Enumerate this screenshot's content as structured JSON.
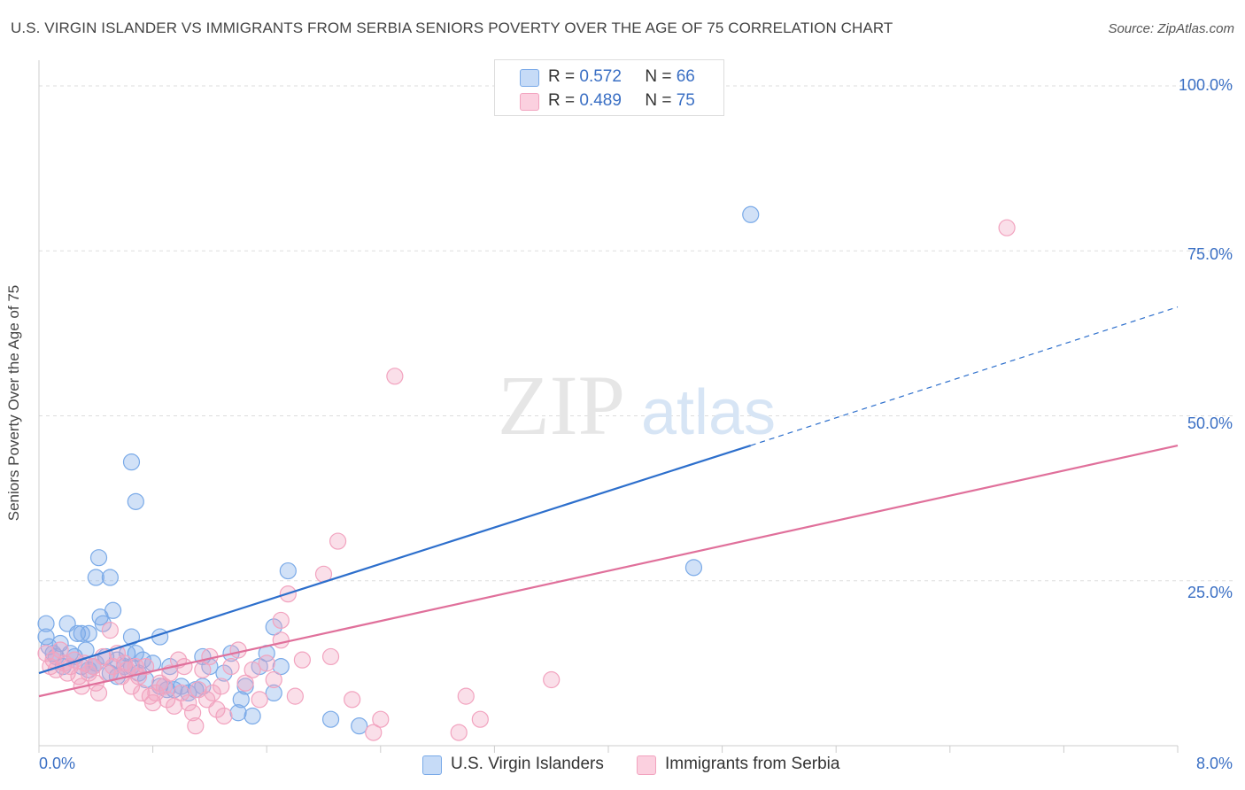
{
  "title": "U.S. VIRGIN ISLANDER VS IMMIGRANTS FROM SERBIA SENIORS POVERTY OVER THE AGE OF 75 CORRELATION CHART",
  "source": "Source: ZipAtlas.com",
  "watermark": {
    "zip": "ZIP",
    "atlas": "atlas"
  },
  "legend_top": [
    {
      "r_label": "R =",
      "r_value": "0.572",
      "n_label": "N =",
      "n_value": "66"
    },
    {
      "r_label": "R =",
      "r_value": "0.489",
      "n_label": "N =",
      "n_value": "75"
    }
  ],
  "chart_data": {
    "type": "scatter",
    "title": "U.S. VIRGIN ISLANDER VS IMMIGRANTS FROM SERBIA SENIORS POVERTY OVER THE AGE OF 75 CORRELATION CHART",
    "xlabel": "",
    "ylabel": "Seniors Poverty Over the Age of 75",
    "xlim": [
      0,
      8
    ],
    "ylim": [
      0,
      100
    ],
    "x_tick_labels": [
      "0.0%",
      "8.0%"
    ],
    "y_tick_labels": [
      "100.0%",
      "75.0%",
      "50.0%",
      "25.0%"
    ],
    "y_ticks": [
      100,
      75,
      50,
      25
    ],
    "grid": true,
    "legend_position": "bottom",
    "series": [
      {
        "name": "U.S. Virgin Islanders",
        "color": "#7aaae8",
        "line_color": "#2d6fcc",
        "trend": {
          "x": [
            0.0,
            5.0
          ],
          "y": [
            11.0,
            45.5
          ],
          "dashed_to": [
            8.0,
            66.5
          ]
        },
        "points": [
          [
            0.05,
            18.5
          ],
          [
            0.05,
            16.5
          ],
          [
            0.07,
            15.0
          ],
          [
            0.1,
            14.0
          ],
          [
            0.12,
            13.5
          ],
          [
            0.15,
            15.5
          ],
          [
            0.17,
            12.0
          ],
          [
            0.2,
            18.5
          ],
          [
            0.22,
            14.0
          ],
          [
            0.25,
            13.5
          ],
          [
            0.27,
            17.0
          ],
          [
            0.3,
            12.0
          ],
          [
            0.3,
            17.0
          ],
          [
            0.33,
            14.5
          ],
          [
            0.35,
            11.5
          ],
          [
            0.35,
            17.0
          ],
          [
            0.38,
            12.0
          ],
          [
            0.4,
            12.5
          ],
          [
            0.4,
            25.5
          ],
          [
            0.43,
            19.5
          ],
          [
            0.45,
            18.5
          ],
          [
            0.47,
            13.5
          ],
          [
            0.5,
            25.5
          ],
          [
            0.5,
            11.0
          ],
          [
            0.52,
            20.5
          ],
          [
            0.55,
            13.0
          ],
          [
            0.55,
            10.5
          ],
          [
            0.6,
            12.0
          ],
          [
            0.62,
            14.0
          ],
          [
            0.65,
            12.0
          ],
          [
            0.65,
            16.5
          ],
          [
            0.68,
            14.0
          ],
          [
            0.7,
            11.0
          ],
          [
            0.73,
            13.0
          ],
          [
            0.75,
            10.0
          ],
          [
            0.8,
            12.5
          ],
          [
            0.85,
            16.5
          ],
          [
            0.85,
            9.0
          ],
          [
            0.9,
            8.5
          ],
          [
            0.92,
            12.0
          ],
          [
            0.95,
            8.5
          ],
          [
            1.0,
            9.0
          ],
          [
            1.05,
            8.0
          ],
          [
            1.1,
            8.5
          ],
          [
            1.15,
            9.0
          ],
          [
            1.15,
            13.5
          ],
          [
            1.2,
            12.0
          ],
          [
            1.3,
            11.0
          ],
          [
            1.35,
            14.0
          ],
          [
            1.4,
            5.0
          ],
          [
            1.42,
            7.0
          ],
          [
            1.45,
            9.0
          ],
          [
            1.5,
            4.5
          ],
          [
            1.55,
            12.0
          ],
          [
            1.6,
            14.0
          ],
          [
            1.65,
            8.0
          ],
          [
            1.7,
            12.0
          ],
          [
            1.75,
            26.5
          ],
          [
            1.65,
            18.0
          ],
          [
            0.65,
            43.0
          ],
          [
            0.68,
            37.0
          ],
          [
            0.42,
            28.5
          ],
          [
            2.05,
            4.0
          ],
          [
            2.25,
            3.0
          ],
          [
            4.6,
            27.0
          ],
          [
            5.0,
            80.5
          ]
        ]
      },
      {
        "name": "Immigrants from Serbia",
        "color": "#f2a3bf",
        "line_color": "#e0709b",
        "trend": {
          "x": [
            0.0,
            8.0
          ],
          "y": [
            7.5,
            45.5
          ]
        },
        "points": [
          [
            0.05,
            14.0
          ],
          [
            0.08,
            12.0
          ],
          [
            0.1,
            13.0
          ],
          [
            0.12,
            11.5
          ],
          [
            0.15,
            14.5
          ],
          [
            0.18,
            12.5
          ],
          [
            0.2,
            11.0
          ],
          [
            0.22,
            12.0
          ],
          [
            0.25,
            13.0
          ],
          [
            0.28,
            10.5
          ],
          [
            0.3,
            9.0
          ],
          [
            0.32,
            12.5
          ],
          [
            0.35,
            11.0
          ],
          [
            0.38,
            12.0
          ],
          [
            0.4,
            9.5
          ],
          [
            0.42,
            8.0
          ],
          [
            0.45,
            13.5
          ],
          [
            0.48,
            11.0
          ],
          [
            0.5,
            17.5
          ],
          [
            0.52,
            12.0
          ],
          [
            0.55,
            14.0
          ],
          [
            0.58,
            10.5
          ],
          [
            0.6,
            12.5
          ],
          [
            0.62,
            11.5
          ],
          [
            0.65,
            9.0
          ],
          [
            0.68,
            12.0
          ],
          [
            0.7,
            10.5
          ],
          [
            0.72,
            8.0
          ],
          [
            0.75,
            12.0
          ],
          [
            0.78,
            7.5
          ],
          [
            0.8,
            6.5
          ],
          [
            0.82,
            8.0
          ],
          [
            0.85,
            9.5
          ],
          [
            0.88,
            9.0
          ],
          [
            0.9,
            7.0
          ],
          [
            0.92,
            11.0
          ],
          [
            0.95,
            6.0
          ],
          [
            0.98,
            13.0
          ],
          [
            1.0,
            8.0
          ],
          [
            1.02,
            12.0
          ],
          [
            1.05,
            6.5
          ],
          [
            1.08,
            5.0
          ],
          [
            1.1,
            3.0
          ],
          [
            1.12,
            8.5
          ],
          [
            1.15,
            11.5
          ],
          [
            1.18,
            7.0
          ],
          [
            1.2,
            13.5
          ],
          [
            1.22,
            8.0
          ],
          [
            1.25,
            5.5
          ],
          [
            1.28,
            9.0
          ],
          [
            1.3,
            4.5
          ],
          [
            1.35,
            12.0
          ],
          [
            1.4,
            14.5
          ],
          [
            1.45,
            9.5
          ],
          [
            1.5,
            11.5
          ],
          [
            1.55,
            7.0
          ],
          [
            1.6,
            12.5
          ],
          [
            1.65,
            10.0
          ],
          [
            1.7,
            16.0
          ],
          [
            1.7,
            19.0
          ],
          [
            1.75,
            23.0
          ],
          [
            1.8,
            7.5
          ],
          [
            1.85,
            13.0
          ],
          [
            2.0,
            26.0
          ],
          [
            2.05,
            13.5
          ],
          [
            2.1,
            31.0
          ],
          [
            2.2,
            7.0
          ],
          [
            2.35,
            2.0
          ],
          [
            2.4,
            4.0
          ],
          [
            2.5,
            56.0
          ],
          [
            2.95,
            2.0
          ],
          [
            3.0,
            7.5
          ],
          [
            3.1,
            4.0
          ],
          [
            3.6,
            10.0
          ],
          [
            6.8,
            78.5
          ]
        ]
      }
    ]
  }
}
